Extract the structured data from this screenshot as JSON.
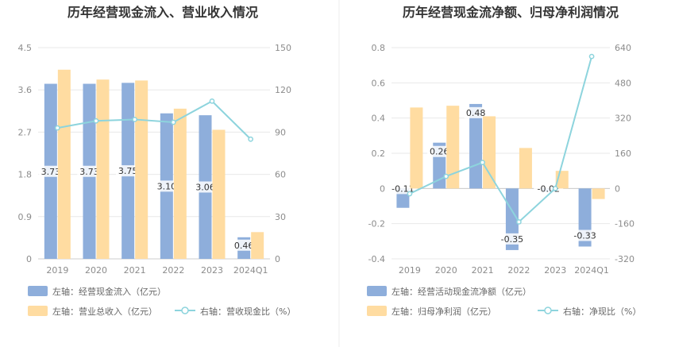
{
  "chart_data": [
    {
      "type": "bar",
      "title": "历年经营现金流入、营业收入情况",
      "categories": [
        "2019",
        "2020",
        "2021",
        "2022",
        "2023",
        "2024Q1"
      ],
      "y_left": {
        "min": 0,
        "max": 4.5,
        "ticks": [
          "0",
          "0.9",
          "1.8",
          "2.7",
          "3.6",
          "4.5"
        ]
      },
      "y_right": {
        "min": 0,
        "max": 150,
        "ticks": [
          "0",
          "30",
          "60",
          "90",
          "120",
          "150"
        ]
      },
      "series": [
        {
          "name": "左轴：经营现金流入（亿元）",
          "kind": "bar",
          "axis": "left",
          "color": "#8eaedb",
          "values": [
            3.73,
            3.73,
            3.75,
            3.1,
            3.06,
            0.46
          ],
          "labels": [
            "3.73",
            "3.73",
            "3.75",
            "3.10",
            "3.06",
            "0.46"
          ]
        },
        {
          "name": "左轴：营业总收入（亿元）",
          "kind": "bar",
          "axis": "left",
          "color": "#ffdca1",
          "values": [
            4.03,
            3.82,
            3.8,
            3.2,
            2.75,
            0.57
          ]
        },
        {
          "name": "右轴：营收现金比（%）",
          "kind": "line",
          "axis": "right",
          "color": "#8dd4dd",
          "values": [
            93,
            98,
            99,
            97,
            112,
            85
          ]
        }
      ]
    },
    {
      "type": "bar",
      "title": "历年经营现金流净额、归母净利润情况",
      "categories": [
        "2019",
        "2020",
        "2021",
        "2022",
        "2023",
        "2024Q1"
      ],
      "y_left": {
        "min": -0.4,
        "max": 0.8,
        "ticks": [
          "-0.4",
          "-0.2",
          "0",
          "0.2",
          "0.4",
          "0.6",
          "0.8"
        ]
      },
      "y_right": {
        "min": -320,
        "max": 640,
        "ticks": [
          "-320",
          "-160",
          "0",
          "160",
          "320",
          "480",
          "640"
        ]
      },
      "series": [
        {
          "name": "左轴：经营活动现金流净额（亿元）",
          "kind": "bar",
          "axis": "left",
          "color": "#8eaedb",
          "values": [
            -0.11,
            0.26,
            0.48,
            -0.35,
            -0.02,
            -0.33
          ],
          "labels": [
            "-0.11",
            "0.26",
            "0.48",
            "-0.35",
            "-0.02",
            "-0.33"
          ]
        },
        {
          "name": "左轴：归母净利润（亿元）",
          "kind": "bar",
          "axis": "left",
          "color": "#ffdca1",
          "values": [
            0.46,
            0.47,
            0.41,
            0.23,
            0.1,
            -0.06
          ]
        },
        {
          "name": "右轴：净现比（%）",
          "kind": "line",
          "axis": "right",
          "color": "#8dd4dd",
          "values": [
            -24,
            55,
            118,
            -152,
            0,
            600
          ]
        }
      ]
    }
  ]
}
